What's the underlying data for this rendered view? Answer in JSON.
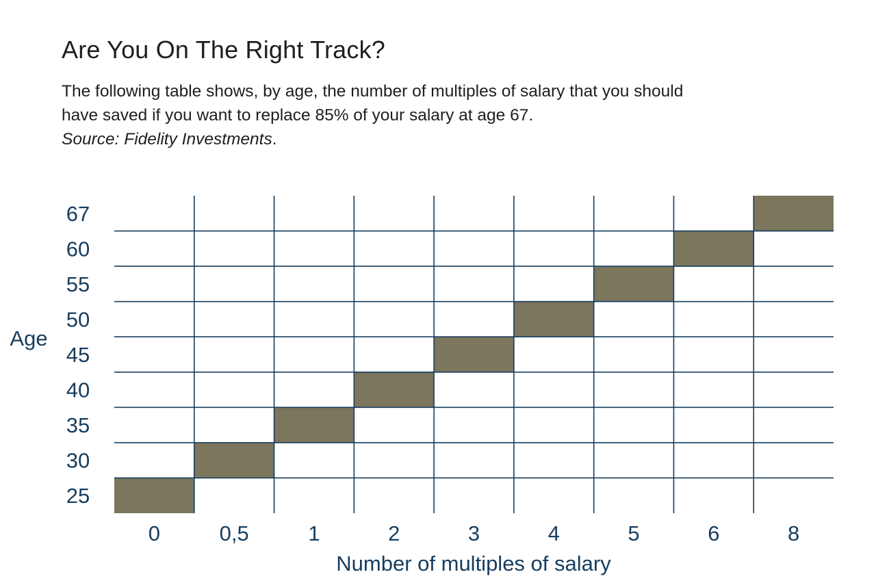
{
  "page": {
    "title": "Are You On The Right Track?",
    "intro_line1": "The following table shows, by age, the number of multiples of salary that you should",
    "intro_line2": "have saved if you want to replace 85% of your salary at age 67.",
    "source_label": "Source: Fidelity Investments",
    "source_suffix": "."
  },
  "colors": {
    "grid": "#173d5e",
    "cell_fill": "#7b765c",
    "label": "#173d5e",
    "text": "#1e1e1e"
  },
  "chart_data": {
    "type": "heatmap",
    "title": "",
    "xlabel": "Number of multiples of salary",
    "ylabel": "Age",
    "x_categories": [
      "0",
      "0,5",
      "1",
      "2",
      "3",
      "4",
      "5",
      "6",
      "8"
    ],
    "y_categories": [
      "25",
      "30",
      "35",
      "40",
      "45",
      "50",
      "55",
      "60",
      "67"
    ],
    "filled_cells": [
      {
        "age": "25",
        "multiple": "0"
      },
      {
        "age": "30",
        "multiple": "0,5"
      },
      {
        "age": "35",
        "multiple": "1"
      },
      {
        "age": "40",
        "multiple": "2"
      },
      {
        "age": "45",
        "multiple": "3"
      },
      {
        "age": "50",
        "multiple": "4"
      },
      {
        "age": "55",
        "multiple": "5"
      },
      {
        "age": "60",
        "multiple": "6"
      },
      {
        "age": "67",
        "multiple": "8"
      }
    ],
    "grid": true,
    "legend": "none"
  }
}
